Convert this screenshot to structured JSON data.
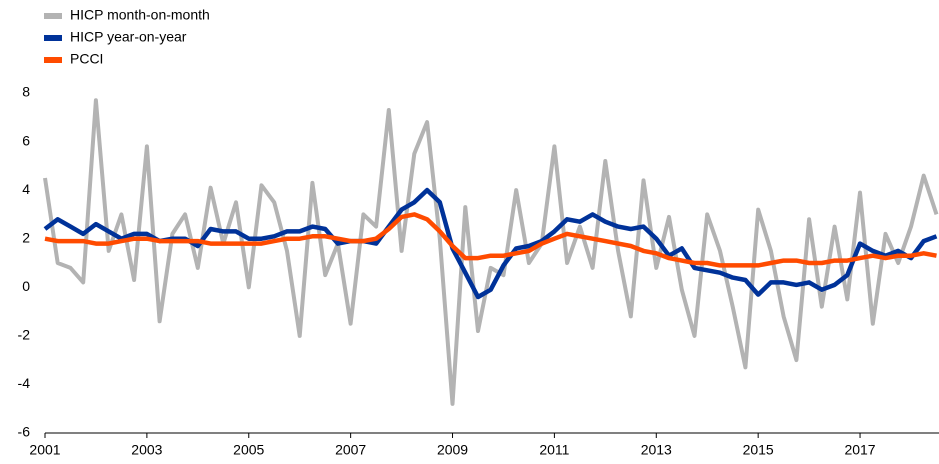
{
  "chart_data": {
    "type": "line",
    "x": [
      2001,
      2001.25,
      2001.5,
      2001.75,
      2002,
      2002.25,
      2002.5,
      2002.75,
      2003,
      2003.25,
      2003.5,
      2003.75,
      2004,
      2004.25,
      2004.5,
      2004.75,
      2005,
      2005.25,
      2005.5,
      2005.75,
      2006,
      2006.25,
      2006.5,
      2006.75,
      2007,
      2007.25,
      2007.5,
      2007.75,
      2008,
      2008.25,
      2008.5,
      2008.75,
      2009,
      2009.25,
      2009.5,
      2009.75,
      2010,
      2010.25,
      2010.5,
      2010.75,
      2011,
      2011.25,
      2011.5,
      2011.75,
      2012,
      2012.25,
      2012.5,
      2012.75,
      2013,
      2013.25,
      2013.5,
      2013.75,
      2014,
      2014.25,
      2014.5,
      2014.75,
      2015,
      2015.25,
      2015.5,
      2015.75,
      2016,
      2016.25,
      2016.5,
      2016.75,
      2017,
      2017.25,
      2017.5,
      2017.75,
      2018,
      2018.25,
      2018.5
    ],
    "series": [
      {
        "name": "HICP month-on-month",
        "color": "#b3b3b3",
        "values": [
          4.5,
          1.0,
          0.8,
          0.2,
          7.7,
          1.5,
          3.0,
          0.3,
          5.8,
          -1.4,
          2.2,
          3.0,
          0.8,
          4.1,
          1.8,
          3.5,
          0.0,
          4.2,
          3.5,
          1.5,
          -2.0,
          4.3,
          0.5,
          1.8,
          -1.5,
          3.0,
          2.5,
          7.3,
          1.5,
          5.5,
          6.8,
          2.0,
          -4.8,
          3.3,
          -1.8,
          0.8,
          0.5,
          4.0,
          1.0,
          1.8,
          5.8,
          1.0,
          2.5,
          0.8,
          5.2,
          1.5,
          -1.2,
          4.4,
          0.8,
          2.9,
          -0.1,
          -2.0,
          3.0,
          1.5,
          -0.8,
          -3.3,
          3.2,
          1.5,
          -1.2,
          -3.0,
          2.8,
          -0.8,
          2.5,
          -0.5,
          3.9,
          -1.5,
          2.2,
          1.0,
          2.5,
          4.6,
          3.0
        ]
      },
      {
        "name": "HICP year-on-year",
        "color": "#003299",
        "values": [
          2.4,
          2.8,
          2.5,
          2.2,
          2.6,
          2.3,
          2.0,
          2.2,
          2.2,
          1.9,
          2.0,
          2.0,
          1.7,
          2.4,
          2.3,
          2.3,
          2.0,
          2.0,
          2.1,
          2.3,
          2.3,
          2.5,
          2.4,
          1.8,
          1.9,
          1.9,
          1.8,
          2.5,
          3.2,
          3.5,
          4.0,
          3.5,
          1.6,
          0.6,
          -0.4,
          -0.1,
          0.9,
          1.6,
          1.7,
          1.9,
          2.3,
          2.8,
          2.7,
          3.0,
          2.7,
          2.5,
          2.4,
          2.5,
          2.0,
          1.3,
          1.6,
          0.8,
          0.7,
          0.6,
          0.4,
          0.3,
          -0.3,
          0.2,
          0.2,
          0.1,
          0.2,
          -0.1,
          0.1,
          0.5,
          1.8,
          1.5,
          1.3,
          1.5,
          1.2,
          1.9,
          2.1
        ]
      },
      {
        "name": "PCCI",
        "color": "#ff4b00",
        "values": [
          2.0,
          1.9,
          1.9,
          1.9,
          1.8,
          1.8,
          1.9,
          2.0,
          2.0,
          1.9,
          1.9,
          1.9,
          1.9,
          1.8,
          1.8,
          1.8,
          1.8,
          1.8,
          1.9,
          2.0,
          2.0,
          2.1,
          2.1,
          2.0,
          1.9,
          1.9,
          2.0,
          2.4,
          2.9,
          3.0,
          2.8,
          2.3,
          1.7,
          1.2,
          1.2,
          1.3,
          1.3,
          1.4,
          1.5,
          1.8,
          2.0,
          2.2,
          2.1,
          2.0,
          1.9,
          1.8,
          1.7,
          1.5,
          1.4,
          1.2,
          1.1,
          1.0,
          1.0,
          0.9,
          0.9,
          0.9,
          0.9,
          1.0,
          1.1,
          1.1,
          1.0,
          1.0,
          1.1,
          1.1,
          1.2,
          1.3,
          1.2,
          1.3,
          1.3,
          1.4,
          1.3
        ]
      }
    ],
    "xlim": [
      2001,
      2018.55
    ],
    "xticks": [
      2001,
      2003,
      2005,
      2007,
      2009,
      2011,
      2013,
      2015,
      2017
    ],
    "ylim": [
      -6,
      8
    ],
    "yticks": [
      -6,
      -4,
      -2,
      0,
      2,
      4,
      6,
      8
    ],
    "legend": "top-left"
  }
}
